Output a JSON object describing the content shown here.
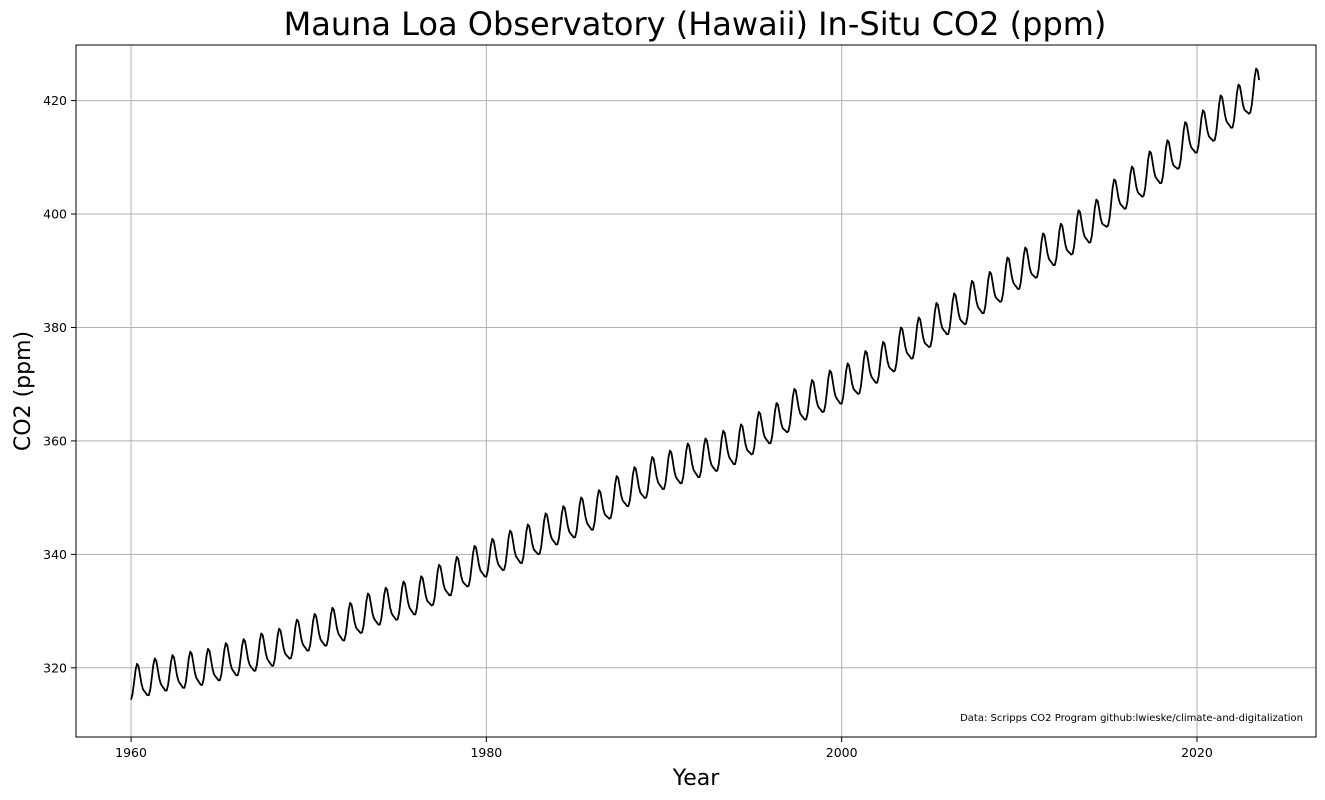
{
  "chart_data": {
    "type": "line",
    "title": "Mauna Loa Observatory (Hawaii) In-Situ CO2 (ppm)",
    "xlabel": "Year",
    "ylabel": "CO2 (ppm)",
    "xlim": [
      1956.9,
      2026.7
    ],
    "ylim": [
      307.8,
      429.8
    ],
    "xticks": [
      1960,
      1980,
      2000,
      2020
    ],
    "yticks": [
      320,
      340,
      360,
      380,
      400,
      420
    ],
    "grid": true,
    "annotation": "Data: Scripps CO2 Program   github:lwieske/climate-and-digitalization",
    "series": [
      {
        "color": "#000000",
        "sampling": "monthly",
        "x_start": 1960.0,
        "x_end": 2023.5,
        "annual_trend_points": [
          [
            1960,
            316.9
          ],
          [
            1962,
            318.5
          ],
          [
            1964,
            319.5
          ],
          [
            1966,
            321.2
          ],
          [
            1968,
            322.9
          ],
          [
            1970,
            325.6
          ],
          [
            1972,
            327.4
          ],
          [
            1974,
            330.2
          ],
          [
            1976,
            332.0
          ],
          [
            1978,
            335.4
          ],
          [
            1980,
            338.7
          ],
          [
            1982,
            341.1
          ],
          [
            1984,
            344.4
          ],
          [
            1986,
            347.0
          ],
          [
            1988,
            351.2
          ],
          [
            1990,
            354.2
          ],
          [
            1992,
            356.3
          ],
          [
            1994,
            358.6
          ],
          [
            1996,
            362.3
          ],
          [
            1998,
            366.5
          ],
          [
            2000,
            369.3
          ],
          [
            2002,
            373.0
          ],
          [
            2004,
            377.3
          ],
          [
            2006,
            381.6
          ],
          [
            2008,
            385.3
          ],
          [
            2010,
            389.6
          ],
          [
            2012,
            393.8
          ],
          [
            2014,
            397.8
          ],
          [
            2016,
            403.8
          ],
          [
            2018,
            408.3
          ],
          [
            2020,
            413.7
          ],
          [
            2022,
            418.1
          ],
          [
            2023.5,
            421.8
          ]
        ],
        "seasonal_amplitude_start": 2.9,
        "seasonal_amplitude_end": 3.3,
        "seasonal_peak_month": 5,
        "seasonal_trough_month": 9
      }
    ]
  }
}
